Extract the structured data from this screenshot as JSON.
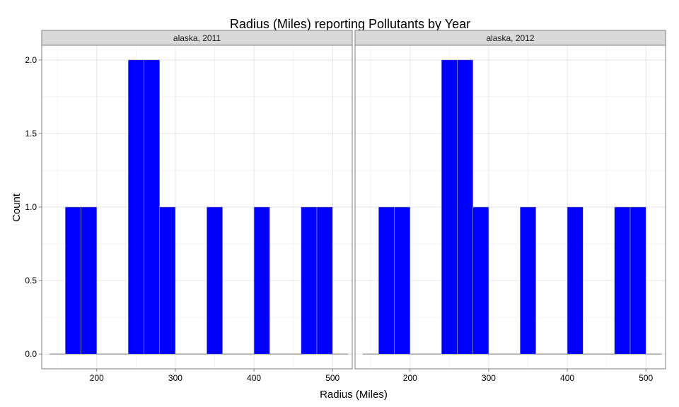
{
  "chart_data": {
    "type": "bar",
    "title": "Radius (Miles) reporting Pollutants by Year",
    "xlabel": "Radius (Miles)",
    "ylabel": "Count",
    "xlim": [
      130,
      525
    ],
    "ylim": [
      -0.1,
      2.1
    ],
    "x_ticks": [
      200,
      300,
      400,
      500
    ],
    "x_minor_ticks": [
      150,
      250,
      350,
      450
    ],
    "y_ticks": [
      0.0,
      0.5,
      1.0,
      1.5,
      2.0
    ],
    "y_tick_labels": [
      "0.0",
      "0.5",
      "1.0",
      "1.5",
      "2.0"
    ],
    "x_tick_labels": [
      "200",
      "300",
      "400",
      "500"
    ],
    "bin_width": 20,
    "baseline_range": [
      140,
      520
    ],
    "grid": true,
    "bar_color": "#0000FF",
    "bar_edge_color": "#A6A6A6",
    "panels": [
      {
        "strip": "alaska, 2011",
        "bins": [
          {
            "x0": 160,
            "x1": 180,
            "count": 1
          },
          {
            "x0": 180,
            "x1": 200,
            "count": 1
          },
          {
            "x0": 240,
            "x1": 260,
            "count": 2
          },
          {
            "x0": 260,
            "x1": 280,
            "count": 2
          },
          {
            "x0": 280,
            "x1": 300,
            "count": 1
          },
          {
            "x0": 340,
            "x1": 360,
            "count": 1
          },
          {
            "x0": 400,
            "x1": 420,
            "count": 1
          },
          {
            "x0": 460,
            "x1": 480,
            "count": 1
          },
          {
            "x0": 480,
            "x1": 500,
            "count": 1
          }
        ]
      },
      {
        "strip": "alaska, 2012",
        "bins": [
          {
            "x0": 160,
            "x1": 180,
            "count": 1
          },
          {
            "x0": 180,
            "x1": 200,
            "count": 1
          },
          {
            "x0": 240,
            "x1": 260,
            "count": 2
          },
          {
            "x0": 260,
            "x1": 280,
            "count": 2
          },
          {
            "x0": 280,
            "x1": 300,
            "count": 1
          },
          {
            "x0": 340,
            "x1": 360,
            "count": 1
          },
          {
            "x0": 400,
            "x1": 420,
            "count": 1
          },
          {
            "x0": 460,
            "x1": 480,
            "count": 1
          },
          {
            "x0": 480,
            "x1": 500,
            "count": 1
          }
        ]
      }
    ]
  }
}
